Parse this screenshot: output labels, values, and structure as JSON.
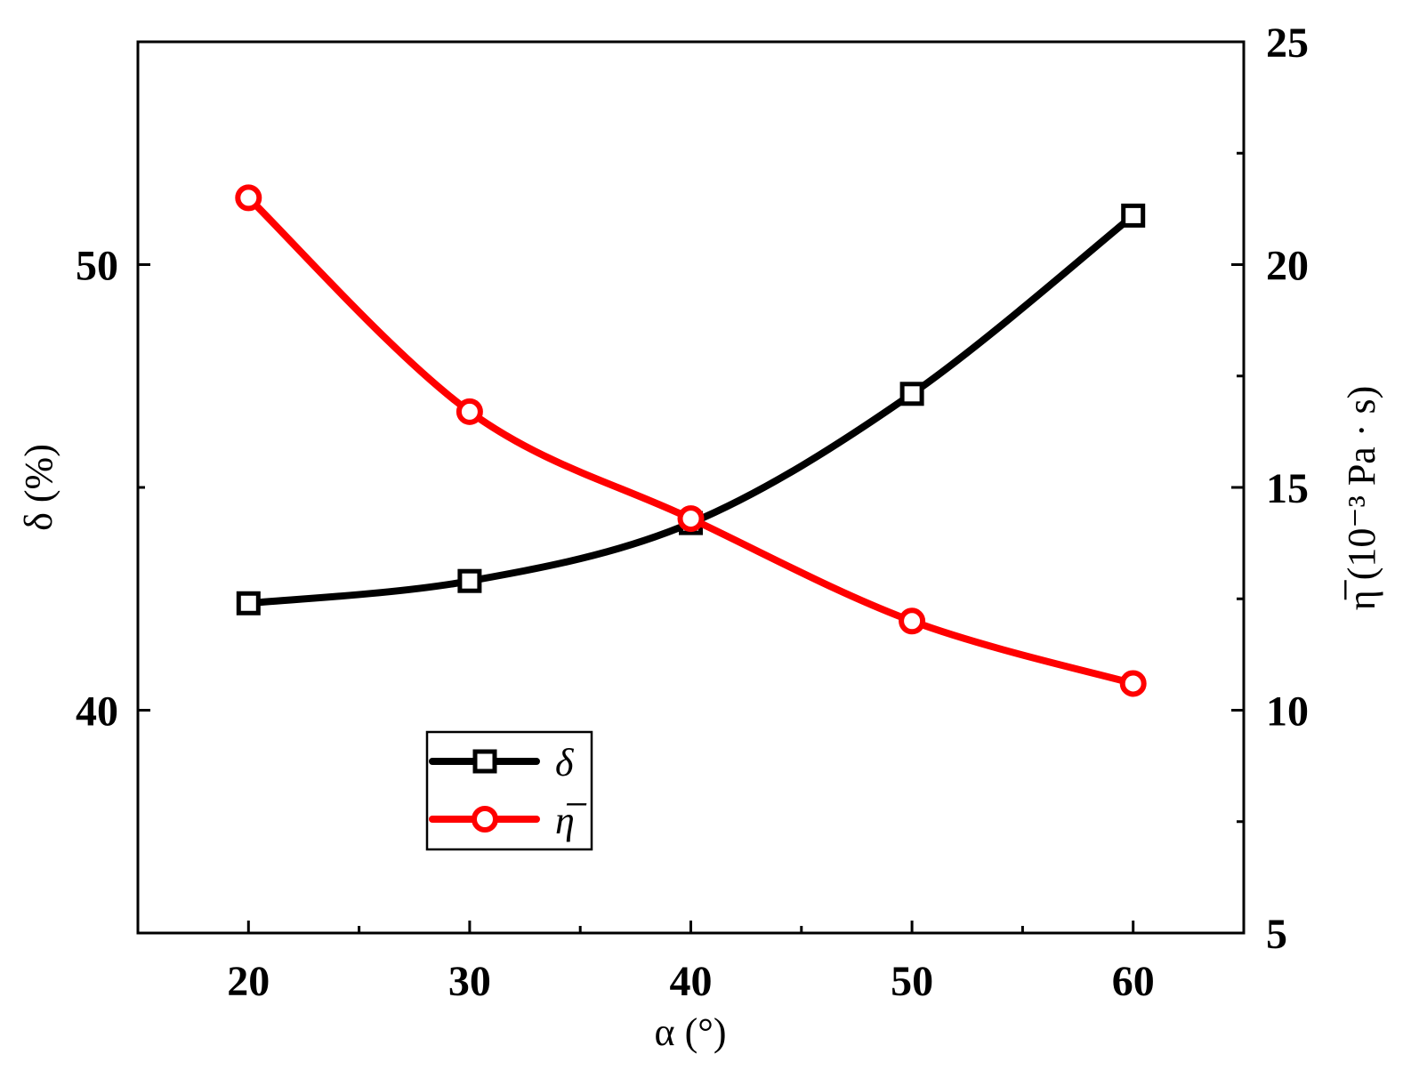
{
  "chart_data": {
    "type": "line",
    "xlabel": "α (°)",
    "ylabel_left": "δ (%)",
    "ylabel_right": "η̅ (10⁻³ Pa · s)",
    "xlim": [
      15,
      65
    ],
    "ylim_left": [
      35,
      55
    ],
    "ylim_right": [
      5,
      25
    ],
    "x_ticks": [
      20,
      30,
      40,
      50,
      60
    ],
    "x_tick_labels": [
      "20",
      "30",
      "40",
      "50",
      "60"
    ],
    "y_left_ticks": [
      40,
      50
    ],
    "y_left_tick_labels": [
      "40",
      "50"
    ],
    "y_right_ticks": [
      5,
      10,
      15,
      20,
      25
    ],
    "y_right_tick_labels": [
      "5",
      "10",
      "15",
      "20",
      "25"
    ],
    "grid": false,
    "legend_position": "bottom-center",
    "series": [
      {
        "name": "δ",
        "axis": "left",
        "color": "#000000",
        "marker": "square",
        "x": [
          20,
          30,
          40,
          50,
          60
        ],
        "y": [
          42.4,
          42.9,
          44.2,
          47.1,
          51.1
        ]
      },
      {
        "name": "η̅",
        "axis": "right",
        "color": "#ff0000",
        "marker": "circle",
        "x": [
          20,
          30,
          40,
          50,
          60
        ],
        "y": [
          21.5,
          16.7,
          14.3,
          12.0,
          10.6
        ]
      }
    ]
  }
}
